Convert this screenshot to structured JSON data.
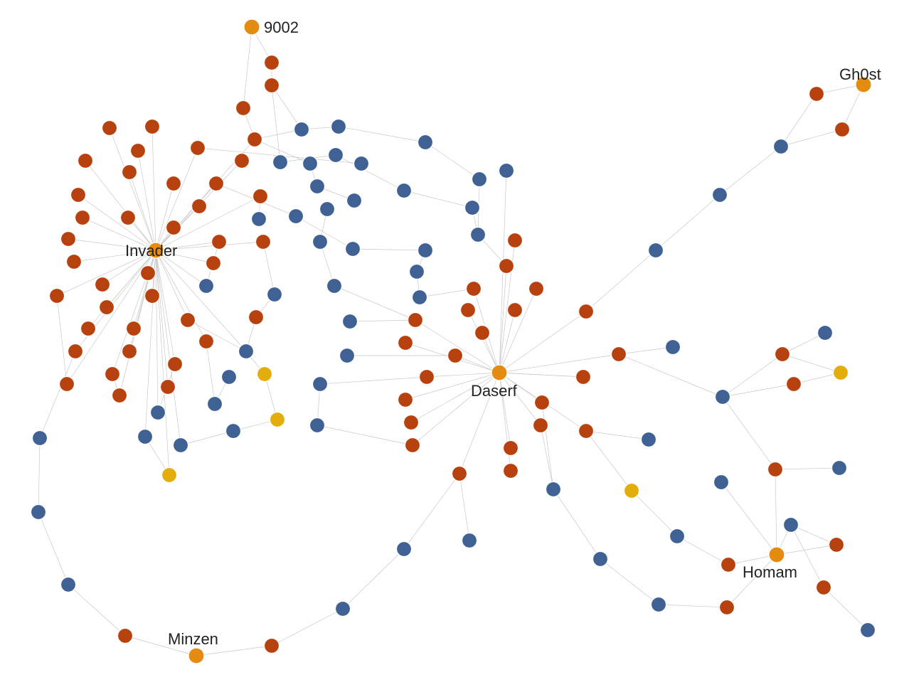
{
  "colors": {
    "hub": "#e48b12",
    "red": "#b8420f",
    "blue": "#3f6193",
    "yellow": "#e3ad0c",
    "edge": "#c8c8c8"
  },
  "hub_labels": {
    "n9002": "9002",
    "gh0st": "Gh0st",
    "invader": "Invader",
    "daserf": "Daserf",
    "homam": "Homam",
    "minzen": "Minzen"
  }
}
